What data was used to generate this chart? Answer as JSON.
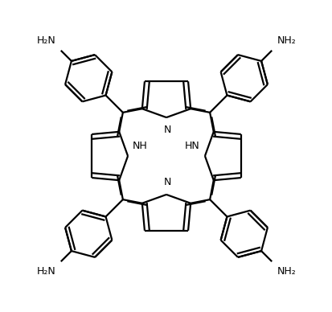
{
  "bg_color": "#ffffff",
  "line_color": "#000000",
  "lw": 1.6,
  "dbl_off": 0.038,
  "fig_w": 4.14,
  "fig_h": 3.88,
  "dpi": 100,
  "xlim": [
    -1.25,
    1.25
  ],
  "ylim": [
    -1.25,
    1.25
  ],
  "font_size": 9.0
}
